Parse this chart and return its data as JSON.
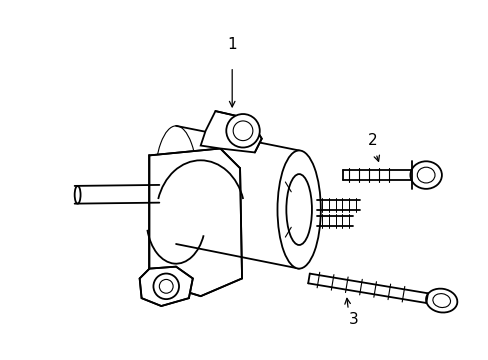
{
  "background_color": "#ffffff",
  "line_color": "#000000",
  "lw": 1.3,
  "tlw": 0.8,
  "label_1": "1",
  "label_2": "2",
  "label_3": "3"
}
